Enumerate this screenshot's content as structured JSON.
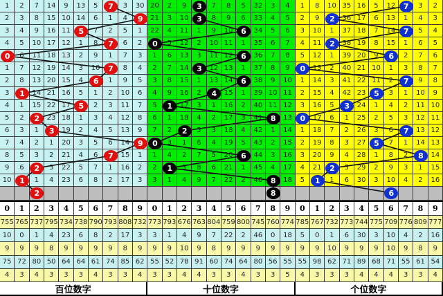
{
  "chart_data": {
    "type": "table",
    "columns": [
      "0",
      "1",
      "2",
      "3",
      "4",
      "5",
      "6",
      "7",
      "8",
      "9"
    ],
    "panels": [
      {
        "name": "百位数字",
        "bg": "#c8f2f2",
        "ball_color": "#e01010",
        "hits": [
          7,
          9,
          5,
          7,
          0,
          7,
          6,
          1,
          5,
          2,
          3,
          9,
          7,
          2,
          1
        ],
        "next": 2,
        "rows": [
          [
            1,
            2,
            7,
            14,
            9,
            13,
            5,
            7,
            3,
            30
          ],
          [
            2,
            3,
            8,
            15,
            10,
            14,
            6,
            1,
            4,
            9
          ],
          [
            3,
            4,
            9,
            16,
            11,
            5,
            7,
            2,
            5,
            1
          ],
          [
            4,
            5,
            10,
            17,
            12,
            1,
            8,
            7,
            6,
            2
          ],
          [
            0,
            6,
            11,
            18,
            13,
            2,
            9,
            1,
            7,
            3
          ],
          [
            1,
            7,
            12,
            19,
            14,
            3,
            10,
            7,
            8,
            4
          ],
          [
            2,
            8,
            13,
            20,
            15,
            4,
            6,
            1,
            9,
            5
          ],
          [
            3,
            1,
            14,
            21,
            16,
            5,
            1,
            2,
            10,
            6
          ],
          [
            4,
            1,
            15,
            22,
            17,
            5,
            2,
            3,
            11,
            7
          ],
          [
            5,
            2,
            2,
            23,
            18,
            1,
            3,
            4,
            12,
            8
          ],
          [
            6,
            3,
            1,
            3,
            19,
            2,
            4,
            5,
            13,
            9
          ],
          [
            7,
            4,
            2,
            1,
            20,
            3,
            5,
            6,
            14,
            9
          ],
          [
            8,
            5,
            3,
            2,
            21,
            4,
            6,
            7,
            15,
            1
          ],
          [
            9,
            6,
            2,
            3,
            22,
            5,
            7,
            1,
            16,
            2
          ],
          [
            10,
            1,
            1,
            4,
            23,
            6,
            8,
            2,
            17,
            3
          ]
        ],
        "stats": [
          [
            755,
            765,
            737,
            795,
            734,
            738,
            790,
            793,
            808,
            732
          ],
          [
            10,
            0,
            1,
            4,
            23,
            6,
            8,
            2,
            17,
            3
          ],
          [
            9,
            9,
            9,
            8,
            9,
            9,
            9,
            9,
            8,
            9
          ],
          [
            75,
            72,
            80,
            50,
            64,
            64,
            61,
            74,
            85,
            62
          ],
          [
            4,
            3,
            4,
            3,
            3,
            3,
            4,
            3,
            3,
            4
          ]
        ]
      },
      {
        "name": "十位数字",
        "bg": "#00ee00",
        "ball_color": "#000000",
        "hits": [
          3,
          3,
          6,
          0,
          6,
          3,
          6,
          4,
          1,
          8,
          2,
          0,
          6,
          1,
          8
        ],
        "next": 8,
        "rows": [
          [
            20,
            2,
            9,
            3,
            7,
            8,
            5,
            32,
            3,
            4
          ],
          [
            21,
            3,
            10,
            3,
            8,
            9,
            6,
            33,
            4,
            5
          ],
          [
            22,
            4,
            11,
            1,
            9,
            10,
            6,
            34,
            5,
            6
          ],
          [
            0,
            5,
            12,
            2,
            10,
            11,
            1,
            35,
            6,
            7
          ],
          [
            1,
            6,
            13,
            3,
            11,
            12,
            6,
            36,
            7,
            8
          ],
          [
            2,
            7,
            14,
            3,
            12,
            13,
            1,
            37,
            8,
            9
          ],
          [
            3,
            8,
            15,
            1,
            13,
            14,
            6,
            38,
            9,
            10
          ],
          [
            4,
            9,
            16,
            2,
            4,
            15,
            1,
            39,
            10,
            11
          ],
          [
            5,
            1,
            17,
            3,
            1,
            16,
            2,
            40,
            11,
            12
          ],
          [
            6,
            1,
            18,
            4,
            2,
            17,
            3,
            41,
            8,
            13
          ],
          [
            7,
            2,
            2,
            5,
            3,
            18,
            4,
            42,
            1,
            14
          ],
          [
            0,
            3,
            1,
            6,
            4,
            19,
            5,
            43,
            2,
            15
          ],
          [
            1,
            4,
            2,
            7,
            5,
            20,
            6,
            44,
            3,
            16
          ],
          [
            2,
            1,
            3,
            8,
            6,
            21,
            1,
            45,
            4,
            17
          ],
          [
            3,
            1,
            4,
            9,
            7,
            22,
            2,
            46,
            8,
            18
          ]
        ],
        "stats": [
          [
            773,
            793,
            676,
            763,
            804,
            759,
            800,
            745,
            760,
            774
          ],
          [
            3,
            1,
            4,
            9,
            7,
            22,
            2,
            46,
            0,
            18
          ],
          [
            9,
            9,
            10,
            9,
            8,
            9,
            9,
            9,
            9,
            9
          ],
          [
            55,
            52,
            78,
            91,
            60,
            74,
            64,
            80,
            56,
            55
          ],
          [
            3,
            3,
            4,
            4,
            3,
            3,
            4,
            3,
            3,
            5
          ]
        ]
      },
      {
        "name": "个位数字",
        "bg": "#ffff00",
        "ball_color": "#1030d0",
        "hits": [
          7,
          2,
          7,
          2,
          6,
          0,
          7,
          5,
          3,
          0,
          7,
          5,
          8,
          2,
          1
        ],
        "next": 6,
        "rows": [
          [
            1,
            8,
            10,
            35,
            16,
            5,
            12,
            7,
            3,
            2
          ],
          [
            2,
            9,
            2,
            36,
            17,
            6,
            13,
            1,
            4,
            3
          ],
          [
            3,
            10,
            1,
            37,
            18,
            7,
            14,
            7,
            5,
            4
          ],
          [
            4,
            11,
            2,
            38,
            19,
            8,
            15,
            1,
            6,
            5
          ],
          [
            5,
            12,
            1,
            39,
            20,
            9,
            6,
            2,
            7,
            6
          ],
          [
            0,
            13,
            2,
            40,
            21,
            10,
            1,
            3,
            8,
            7
          ],
          [
            1,
            14,
            3,
            41,
            22,
            11,
            2,
            7,
            9,
            8
          ],
          [
            2,
            15,
            4,
            42,
            23,
            5,
            3,
            1,
            10,
            9
          ],
          [
            3,
            16,
            5,
            3,
            24,
            1,
            4,
            2,
            11,
            10
          ],
          [
            0,
            17,
            6,
            1,
            25,
            2,
            5,
            3,
            12,
            11
          ],
          [
            1,
            18,
            7,
            2,
            26,
            3,
            6,
            7,
            13,
            12
          ],
          [
            2,
            19,
            8,
            3,
            27,
            5,
            7,
            1,
            14,
            13
          ],
          [
            3,
            20,
            9,
            4,
            28,
            1,
            8,
            2,
            8,
            14
          ],
          [
            4,
            21,
            2,
            5,
            29,
            2,
            9,
            3,
            1,
            15
          ],
          [
            5,
            1,
            1,
            6,
            30,
            3,
            10,
            4,
            2,
            16
          ]
        ],
        "stats": [
          [
            785,
            767,
            732,
            773,
            744,
            775,
            709,
            776,
            809,
            777
          ],
          [
            5,
            0,
            1,
            6,
            30,
            3,
            10,
            4,
            2,
            16
          ],
          [
            9,
            9,
            10,
            9,
            9,
            9,
            10,
            9,
            8,
            9
          ],
          [
            55,
            98,
            62,
            71,
            89,
            68,
            71,
            55,
            61,
            54
          ],
          [
            4,
            3,
            3,
            3,
            4,
            4,
            4,
            3,
            3,
            4
          ]
        ]
      }
    ],
    "stat_row_colors": [
      "#f8f8a8",
      "#c8f0f0",
      "#f8f8a8",
      "#c8f0f0",
      "#f8f8a8"
    ],
    "gray_row_color": "#bdbdbd"
  }
}
